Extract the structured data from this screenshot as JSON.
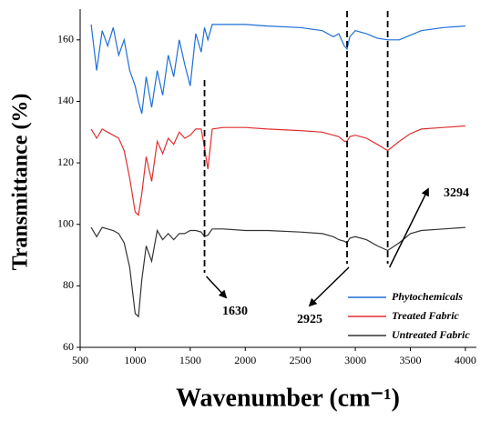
{
  "chart_data": {
    "type": "line",
    "xlabel": "Wavenumber (cm⁻¹)",
    "ylabel": "Transmittance (%)",
    "x": [
      600,
      650,
      700,
      750,
      800,
      850,
      900,
      950,
      1000,
      1030,
      1060,
      1100,
      1150,
      1200,
      1250,
      1300,
      1350,
      1400,
      1450,
      1500,
      1550,
      1600,
      1630,
      1660,
      1700,
      1800,
      2000,
      2200,
      2500,
      2700,
      2800,
      2850,
      2900,
      2925,
      2950,
      3000,
      3100,
      3200,
      3294,
      3400,
      3500,
      3600,
      3800,
      4000
    ],
    "series": [
      {
        "name": "Phytochemicals",
        "color": "#1f6fd6",
        "values": [
          165,
          150,
          163,
          158,
          164,
          155,
          160,
          150,
          145,
          140,
          136,
          148,
          138,
          150,
          142,
          155,
          148,
          160,
          152,
          145,
          162,
          156,
          164,
          160,
          165,
          165,
          165,
          164.5,
          164,
          163,
          161,
          162,
          158,
          157,
          161,
          163,
          162,
          160.5,
          160,
          160,
          161.5,
          163,
          164,
          164.5
        ]
      },
      {
        "name": "Treated Fabric",
        "color": "#e03030",
        "values": [
          131,
          128,
          131,
          130,
          129,
          128,
          124,
          115,
          104,
          103,
          110,
          122,
          114,
          127,
          123,
          128,
          126,
          130,
          128,
          129,
          131,
          131,
          125,
          118,
          131,
          131.5,
          131.5,
          131,
          130.5,
          130,
          129,
          128.5,
          127,
          127,
          128.5,
          129,
          128,
          126,
          124,
          127,
          129.5,
          131,
          131.5,
          132
        ]
      },
      {
        "name": "Untreated Fabric",
        "color": "#333333",
        "values": [
          99,
          96,
          99,
          98.5,
          98,
          97,
          94,
          86,
          71,
          70,
          82,
          93,
          88,
          98,
          95,
          97,
          95,
          97,
          97,
          98,
          98,
          97.5,
          96,
          96.5,
          98.5,
          98.5,
          98,
          98,
          97.5,
          97,
          96,
          95,
          94.5,
          94,
          95.5,
          96,
          95,
          93,
          91.5,
          94,
          97,
          98,
          98.5,
          99
        ]
      }
    ],
    "xlim": [
      500,
      4100
    ],
    "xticks": [
      500,
      1000,
      1500,
      2000,
      2500,
      3000,
      3500,
      4000
    ],
    "ylim": [
      60,
      170
    ],
    "yticks": [
      60,
      80,
      100,
      120,
      140,
      160
    ],
    "grid": false,
    "legend": "lower right",
    "annotations": [
      {
        "text": "1630",
        "x": 1630
      },
      {
        "text": "2925",
        "x": 2925
      },
      {
        "text": "3294",
        "x": 3294
      }
    ]
  }
}
